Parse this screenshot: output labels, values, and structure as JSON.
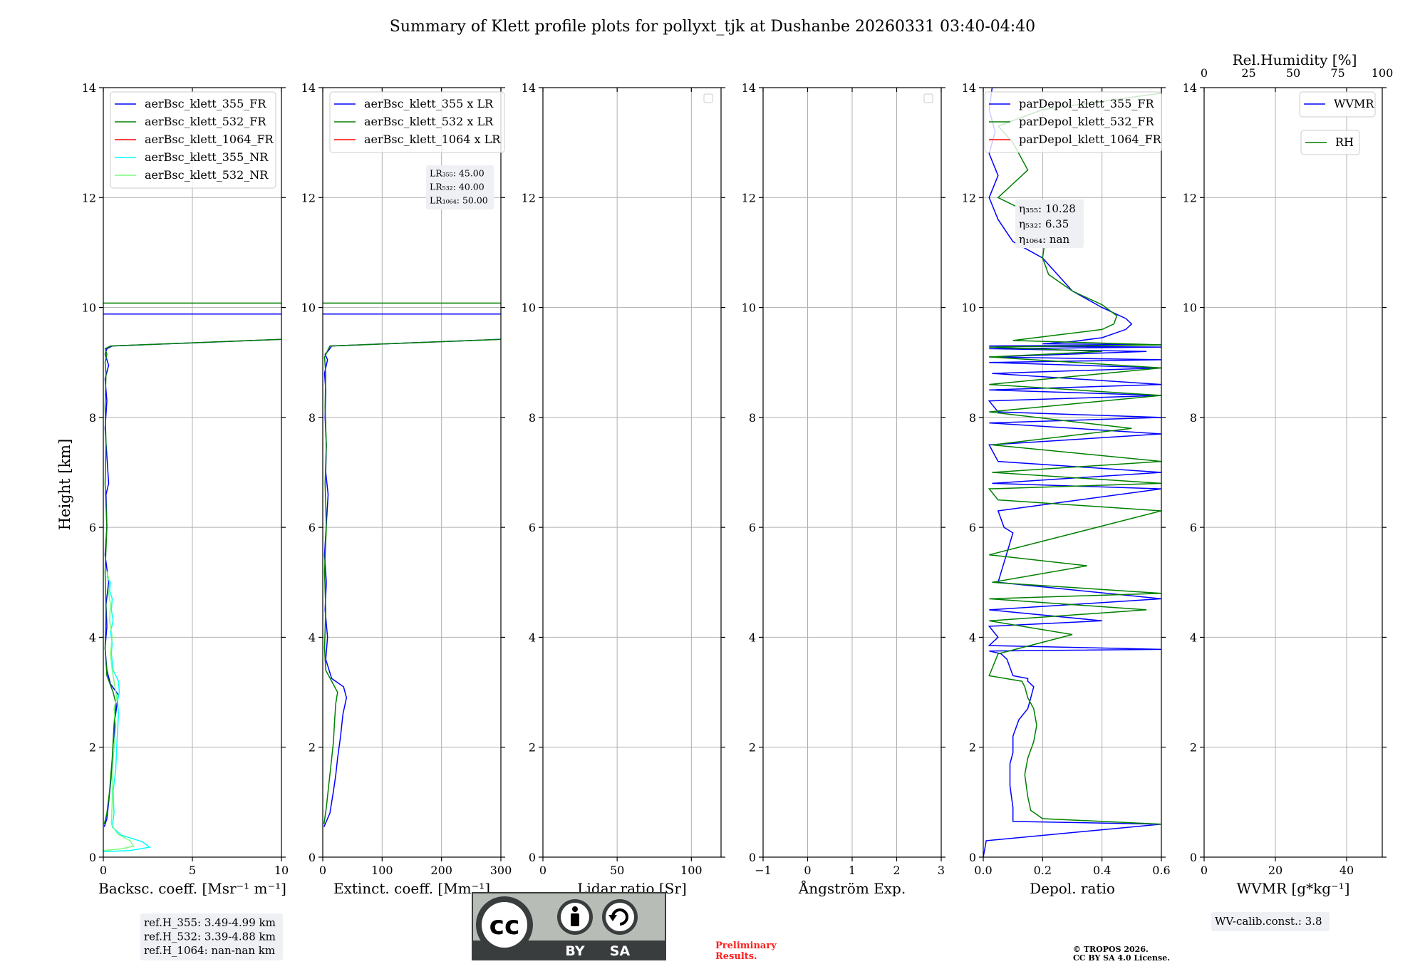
{
  "title": "Summary of Klett profile plots for pollyxt_tjk at Dushanbe 20260331 03:40-04:40",
  "colors": {
    "blue": "#0000ff",
    "green": "#008000",
    "red": "#ff0000",
    "cyan": "#00ffff",
    "lightgreen": "#7cfc7c",
    "grid": "#b0b0b0",
    "box": "#eef0f4",
    "logo_gray": "#b7bcb7",
    "logo_dark": "#3a3d3d",
    "prelim": "#ff2020"
  },
  "ylabel": "Height [km]",
  "chart_data": [
    {
      "type": "line",
      "xlabel": "Backsc. coeff. [Msr⁻¹ m⁻¹]",
      "xlim": [
        0,
        10
      ],
      "ylim": [
        0,
        14
      ],
      "xticks": [
        "0",
        "5",
        "10"
      ],
      "xtick_values": [
        0,
        5,
        10
      ],
      "yticks": [
        "0",
        "2",
        "4",
        "6",
        "8",
        "10",
        "12",
        "14"
      ],
      "legend": [
        "aerBsc_klett_355_FR",
        "aerBsc_klett_532_FR",
        "aerBsc_klett_1064_FR",
        "aerBsc_klett_355_NR",
        "aerBsc_klett_532_NR"
      ],
      "legend_colors": [
        "blue",
        "green",
        "red",
        "cyan",
        "lightgreen"
      ],
      "series": [
        {
          "name": "aerBsc_klett_355_FR",
          "color": "blue",
          "x": [
            0.05,
            0.2,
            0.3,
            0.45,
            0.6,
            0.65,
            0.75,
            0.85,
            0.4,
            0.2,
            0.1,
            0.2,
            0.15,
            0.3,
            0.1,
            0.2,
            0.15,
            0.3,
            0.2,
            0.1,
            0.2,
            0.1,
            0.3,
            0.1,
            0.2,
            0.5,
            10,
            10
          ],
          "y": [
            0.55,
            0.7,
            1.0,
            1.5,
            2.0,
            2.5,
            2.75,
            2.95,
            3.15,
            3.4,
            3.8,
            4.2,
            4.6,
            5.0,
            5.5,
            6.0,
            6.6,
            6.8,
            7.3,
            7.8,
            8.3,
            8.7,
            8.95,
            9.15,
            9.25,
            9.3,
            9.42,
            9.42
          ]
        },
        {
          "name": "aerBsc_klett_532_FR",
          "color": "green",
          "x": [
            0.05,
            0.2,
            0.35,
            0.5,
            0.6,
            0.7,
            0.55,
            0.2,
            0.1,
            0.15,
            0.1,
            0.2,
            0.1,
            0.15,
            0.1,
            0.15,
            0.1,
            0.2,
            0.1,
            0.4,
            10
          ],
          "y": [
            0.6,
            0.8,
            1.2,
            1.8,
            2.4,
            2.8,
            3.0,
            3.3,
            3.8,
            4.5,
            5.2,
            6.0,
            6.8,
            7.5,
            8.2,
            8.8,
            9.0,
            9.15,
            9.25,
            9.3,
            9.42
          ]
        },
        {
          "name": "aerBsc_klett_355_FR_upper",
          "color": "blue",
          "x": [
            0,
            10
          ],
          "y": [
            9.88,
            9.88
          ]
        },
        {
          "name": "aerBsc_klett_532_FR_upper",
          "color": "green",
          "x": [
            0,
            10
          ],
          "y": [
            10.08,
            10.08
          ]
        },
        {
          "name": "aerBsc_klett_355_NR",
          "color": "cyan",
          "x": [
            0.0,
            1.5,
            2.6,
            2.2,
            1.0,
            0.5,
            0.6,
            0.55,
            0.7,
            0.75,
            0.8,
            0.85,
            0.8,
            0.9,
            0.85,
            0.55,
            0.45,
            0.5,
            0.4,
            0.55,
            0.45,
            0.5,
            0.35,
            0.4,
            0.2
          ],
          "y": [
            0.1,
            0.12,
            0.18,
            0.28,
            0.4,
            0.55,
            0.8,
            1.2,
            1.6,
            2.0,
            2.3,
            2.6,
            2.85,
            3.0,
            3.2,
            3.4,
            3.7,
            3.9,
            4.1,
            4.3,
            4.5,
            4.7,
            4.85,
            5.0,
            5.1
          ]
        },
        {
          "name": "aerBsc_klett_532_NR",
          "color": "lightgreen",
          "x": [
            0.0,
            1.0,
            1.7,
            1.5,
            0.8,
            0.45,
            0.5,
            0.5,
            0.6,
            0.7,
            0.6,
            0.75,
            0.65,
            0.5,
            0.4,
            0.5,
            0.35,
            0.4,
            0.3,
            0.35,
            0.2
          ],
          "y": [
            0.12,
            0.15,
            0.2,
            0.3,
            0.42,
            0.6,
            1.0,
            1.5,
            2.0,
            2.4,
            2.7,
            2.9,
            3.1,
            3.4,
            3.7,
            4.0,
            4.3,
            4.6,
            4.8,
            5.0,
            5.2
          ]
        }
      ],
      "info_box": [
        "ref.H_355: 3.49-4.99 km",
        "ref.H_532: 3.39-4.88 km",
        "ref.H_1064: nan-nan km"
      ]
    },
    {
      "type": "line",
      "xlabel": "Extinct. coeff. [Mm⁻¹]",
      "xlim": [
        0,
        300
      ],
      "ylim": [
        0,
        14
      ],
      "xticks": [
        "0",
        "100",
        "200",
        "300"
      ],
      "xtick_values": [
        0,
        100,
        200,
        300
      ],
      "yticks": [
        "0",
        "2",
        "4",
        "6",
        "8",
        "10",
        "12",
        "14"
      ],
      "legend": [
        "aerBsc_klett_355 x LR",
        "aerBsc_klett_532 x LR",
        "aerBsc_klett_1064 x LR"
      ],
      "legend_colors": [
        "blue",
        "green",
        "red"
      ],
      "series": [
        {
          "name": "aerBsc_klett_355 x LR",
          "color": "blue",
          "x": [
            2,
            12,
            18,
            22,
            25,
            30,
            34,
            40,
            35,
            15,
            5,
            8,
            4,
            6,
            3,
            9,
            5,
            6,
            4,
            5,
            3,
            8,
            4,
            10,
            15,
            300,
            300
          ],
          "y": [
            0.55,
            0.8,
            1.2,
            1.5,
            1.8,
            2.2,
            2.6,
            2.9,
            3.1,
            3.25,
            3.6,
            4.0,
            4.5,
            5.0,
            5.5,
            6.6,
            7.0,
            7.5,
            8.0,
            8.5,
            8.8,
            9.05,
            9.15,
            9.22,
            9.3,
            9.42,
            9.42
          ]
        },
        {
          "name": "aerBsc_klett_532 x LR",
          "color": "green",
          "x": [
            2,
            6,
            10,
            14,
            18,
            20,
            22,
            25,
            15,
            5,
            3,
            5,
            3,
            6,
            4,
            6,
            4,
            5,
            3,
            12,
            300
          ],
          "y": [
            0.6,
            0.9,
            1.3,
            1.7,
            2.1,
            2.5,
            2.8,
            3.0,
            3.2,
            3.4,
            3.8,
            4.5,
            5.2,
            6.0,
            6.8,
            7.5,
            8.2,
            8.8,
            9.1,
            9.3,
            9.42
          ]
        },
        {
          "name": "ext_355_upper",
          "color": "blue",
          "x": [
            0,
            300
          ],
          "y": [
            9.88,
            9.88
          ]
        },
        {
          "name": "ext_532_upper",
          "color": "green",
          "x": [
            0,
            300
          ],
          "y": [
            10.08,
            10.08
          ]
        }
      ],
      "info_box": [
        "LR₃₅₅: 45.00",
        "LR₅₃₂: 40.00",
        "LR₁₀₆₄: 50.00"
      ]
    },
    {
      "type": "line",
      "xlabel": "Lidar ratio [Sr]",
      "xlim": [
        0,
        120
      ],
      "ylim": [
        0,
        14
      ],
      "xticks": [
        "0",
        "50",
        "100"
      ],
      "xtick_values": [
        0,
        50,
        100
      ],
      "yticks": [
        "0",
        "2",
        "4",
        "6",
        "8",
        "10",
        "12",
        "14"
      ],
      "legend": [],
      "legend_colors": [],
      "series": [],
      "empty_legend": true
    },
    {
      "type": "line",
      "xlabel": "Ångström Exp.",
      "xlim": [
        -1,
        3
      ],
      "ylim": [
        0,
        14
      ],
      "xticks": [
        "−1",
        "0",
        "1",
        "2",
        "3"
      ],
      "xtick_values": [
        -1,
        0,
        1,
        2,
        3
      ],
      "yticks": [
        "0",
        "2",
        "4",
        "6",
        "8",
        "10",
        "12",
        "14"
      ],
      "legend": [],
      "legend_colors": [],
      "series": [],
      "empty_legend": true
    },
    {
      "type": "line",
      "xlabel": "Depol. ratio",
      "xlim": [
        0,
        0.6
      ],
      "ylim": [
        0,
        14
      ],
      "xticks": [
        "0.0",
        "0.2",
        "0.4",
        "0.6"
      ],
      "xtick_values": [
        0,
        0.2,
        0.4,
        0.6
      ],
      "yticks": [
        "0",
        "2",
        "4",
        "6",
        "8",
        "10",
        "12",
        "14"
      ],
      "legend": [
        "parDepol_klett_355_FR",
        "parDepol_klett_532_FR",
        "parDepol_klett_1064_FR"
      ],
      "legend_colors": [
        "blue",
        "green",
        "red"
      ],
      "series": [
        {
          "name": "parDepol_klett_355_FR",
          "color": "blue",
          "x": [
            0.0,
            0.01,
            0.6,
            0.1,
            0.1,
            0.09,
            0.09,
            0.1,
            0.1,
            0.12,
            0.15,
            0.16,
            0.17,
            0.15,
            0.15,
            0.1,
            0.08,
            0.06,
            0.02,
            0.6,
            0.02,
            0.05,
            0.02,
            0.4,
            0.02,
            0.6,
            0.05,
            0.1,
            0.07,
            0.05,
            0.6,
            0.03,
            0.6,
            0.05,
            0.02,
            0.6,
            0.02,
            0.6,
            0.05,
            0.02,
            0.6,
            0.02,
            0.6,
            0.03,
            0.6,
            0.02,
            0.6,
            0.02,
            0.55,
            0.02,
            0.6,
            0.02,
            0.6,
            0.2,
            0.3,
            0.4,
            0.48,
            0.5,
            0.48,
            0.4,
            0.3,
            0.25,
            0.2,
            0.1,
            0.05,
            0.02,
            0.05,
            0.02,
            0.04,
            0.02,
            0.03
          ],
          "y": [
            0.0,
            0.3,
            0.6,
            0.65,
            0.9,
            1.3,
            1.7,
            1.9,
            2.2,
            2.5,
            2.7,
            2.9,
            3.1,
            3.2,
            3.25,
            3.3,
            3.6,
            3.7,
            3.75,
            3.78,
            3.85,
            4.0,
            4.2,
            4.3,
            4.5,
            4.7,
            5.0,
            5.9,
            6.0,
            6.3,
            6.7,
            6.8,
            7.0,
            7.2,
            7.5,
            7.7,
            7.9,
            8.0,
            8.1,
            8.3,
            8.4,
            8.5,
            8.6,
            8.8,
            8.9,
            9.0,
            9.05,
            9.1,
            9.2,
            9.25,
            9.28,
            9.3,
            9.32,
            9.34,
            9.38,
            9.45,
            9.6,
            9.7,
            9.8,
            10.0,
            10.3,
            10.6,
            10.9,
            11.2,
            11.6,
            12.0,
            12.4,
            12.8,
            13.2,
            13.6,
            14.0
          ]
        },
        {
          "name": "parDepol_klett_532_FR",
          "color": "green",
          "x": [
            0.6,
            0.2,
            0.16,
            0.15,
            0.14,
            0.15,
            0.17,
            0.18,
            0.17,
            0.15,
            0.14,
            0.13,
            0.02,
            0.05,
            0.3,
            0.02,
            0.55,
            0.02,
            0.6,
            0.03,
            0.35,
            0.02,
            0.6,
            0.05,
            0.02,
            0.6,
            0.03,
            0.6,
            0.03,
            0.5,
            0.02,
            0.6,
            0.02,
            0.6,
            0.02,
            0.4,
            0.02,
            0.6,
            0.1,
            0.25,
            0.4,
            0.44,
            0.45,
            0.4,
            0.3,
            0.22,
            0.2,
            0.21,
            0.2,
            0.05,
            0.15,
            0.1,
            0.05,
            0.2,
            0.6
          ],
          "y": [
            0.6,
            0.7,
            0.85,
            1.1,
            1.5,
            1.8,
            2.1,
            2.4,
            2.7,
            2.9,
            3.1,
            3.2,
            3.3,
            3.7,
            4.05,
            4.3,
            4.5,
            4.7,
            4.8,
            5.0,
            5.3,
            5.5,
            6.3,
            6.5,
            6.7,
            6.8,
            7.0,
            7.2,
            7.5,
            7.8,
            8.1,
            8.4,
            8.6,
            8.9,
            9.1,
            9.2,
            9.28,
            9.32,
            9.4,
            9.5,
            9.6,
            9.7,
            9.85,
            10.05,
            10.3,
            10.6,
            10.9,
            11.3,
            11.6,
            12.0,
            12.5,
            13.0,
            13.3,
            13.6,
            13.9
          ]
        }
      ],
      "info_box": [
        "η₃₅₅: 10.28",
        "η₅₃₂: 6.35",
        "η₁₀₆₄: nan"
      ]
    },
    {
      "type": "line",
      "xlabel": "WVMR [g*kg⁻¹]",
      "xlim": [
        0,
        50
      ],
      "ylim": [
        0,
        14
      ],
      "xticks": [
        "0",
        "20",
        "40"
      ],
      "xtick_values": [
        0,
        20,
        40
      ],
      "yticks": [
        "0",
        "2",
        "4",
        "6",
        "8",
        "10",
        "12",
        "14"
      ],
      "top_axis_label": "Rel.Humidity [%]",
      "top_xlim": [
        0,
        100
      ],
      "top_xticks": [
        "0",
        "25",
        "50",
        "75",
        "100"
      ],
      "top_xtick_values": [
        0,
        25,
        50,
        75,
        100
      ],
      "legend": [
        "WVMR"
      ],
      "legend_colors": [
        "blue"
      ],
      "legend2": [
        "RH"
      ],
      "legend2_colors": [
        "green"
      ],
      "series": [],
      "info_box": [
        "WV-calib.const.: 3.8"
      ]
    }
  ],
  "license_logo": {
    "text_cc": "cc",
    "text_by": "BY",
    "text_sa": "SA"
  },
  "preliminary": [
    "Preliminary",
    "Results."
  ],
  "copyright": [
    "© TROPOS 2026.",
    "CC BY SA 4.0 License."
  ]
}
